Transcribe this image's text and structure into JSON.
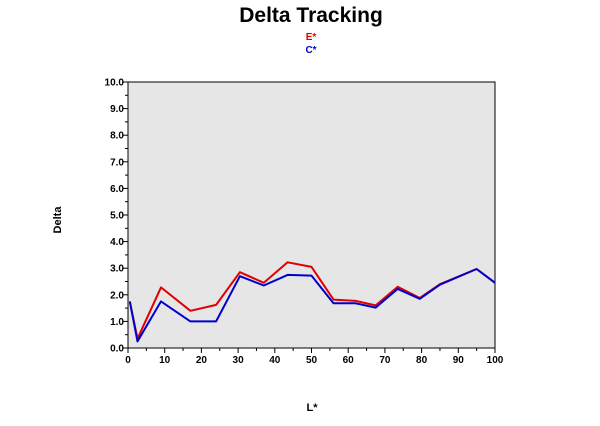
{
  "chart_data": {
    "type": "line",
    "title": "Delta Tracking",
    "xlabel": "L*",
    "ylabel": "Delta",
    "xlim": [
      0,
      100
    ],
    "ylim": [
      0,
      10
    ],
    "x_ticks": [
      "0",
      "10",
      "20",
      "30",
      "40",
      "50",
      "60",
      "70",
      "80",
      "90",
      "100"
    ],
    "y_ticks": [
      "0.0",
      "1.0",
      "2.0",
      "3.0",
      "4.0",
      "5.0",
      "6.0",
      "7.0",
      "8.0",
      "9.0",
      "10.0"
    ],
    "grid": false,
    "legend_position": "top-center",
    "plot_background": "#e6e6e6",
    "series": [
      {
        "name": "E*",
        "color": "#e00000",
        "points": [
          [
            0.5,
            1.75
          ],
          [
            2.6,
            0.35
          ],
          [
            9,
            2.28
          ],
          [
            17,
            1.4
          ],
          [
            24,
            1.62
          ],
          [
            30.5,
            2.85
          ],
          [
            37,
            2.45
          ],
          [
            43.5,
            3.22
          ],
          [
            50,
            3.05
          ],
          [
            56,
            1.82
          ],
          [
            62,
            1.77
          ],
          [
            67.5,
            1.6
          ],
          [
            73.5,
            2.3
          ],
          [
            79.5,
            1.88
          ],
          [
            85,
            2.4
          ],
          [
            95,
            2.97
          ],
          [
            100,
            2.45
          ]
        ]
      },
      {
        "name": "C*",
        "color": "#0000cc",
        "points": [
          [
            0.5,
            1.75
          ],
          [
            2.6,
            0.25
          ],
          [
            9,
            1.75
          ],
          [
            17,
            1.0
          ],
          [
            24,
            1.0
          ],
          [
            30.5,
            2.7
          ],
          [
            37,
            2.35
          ],
          [
            43.5,
            2.75
          ],
          [
            50,
            2.72
          ],
          [
            56,
            1.68
          ],
          [
            62,
            1.68
          ],
          [
            67.5,
            1.52
          ],
          [
            73.5,
            2.22
          ],
          [
            79.5,
            1.85
          ],
          [
            85,
            2.38
          ],
          [
            95,
            2.97
          ],
          [
            100,
            2.45
          ]
        ]
      }
    ]
  }
}
